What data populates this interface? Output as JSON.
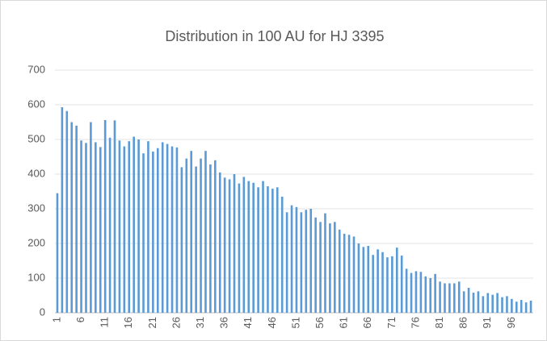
{
  "chart_data": {
    "type": "bar",
    "title": "Distribution in 100 AU for HJ 3395",
    "categories": [
      "1",
      null,
      null,
      null,
      null,
      "6",
      null,
      null,
      null,
      null,
      "11",
      null,
      null,
      null,
      null,
      "16",
      null,
      null,
      null,
      null,
      "21",
      null,
      null,
      null,
      null,
      "26",
      null,
      null,
      null,
      null,
      "31",
      null,
      null,
      null,
      null,
      "36",
      null,
      null,
      null,
      null,
      "41",
      null,
      null,
      null,
      null,
      "46",
      null,
      null,
      null,
      null,
      "51",
      null,
      null,
      null,
      null,
      "56",
      null,
      null,
      null,
      null,
      "61",
      null,
      null,
      null,
      null,
      "66",
      null,
      null,
      null,
      null,
      "71",
      null,
      null,
      null,
      null,
      "76",
      null,
      null,
      null,
      null,
      "81",
      null,
      null,
      null,
      null,
      "86",
      null,
      null,
      null,
      null,
      "91",
      null,
      null,
      null,
      null,
      "96",
      null,
      null,
      null,
      null
    ],
    "values": [
      345,
      593,
      582,
      550,
      540,
      497,
      490,
      550,
      492,
      478,
      556,
      505,
      555,
      497,
      480,
      495,
      508,
      500,
      460,
      495,
      465,
      475,
      492,
      487,
      480,
      477,
      420,
      445,
      467,
      422,
      445,
      467,
      428,
      440,
      405,
      390,
      385,
      400,
      373,
      392,
      380,
      375,
      362,
      380,
      365,
      358,
      362,
      335,
      290,
      310,
      305,
      290,
      297,
      300,
      275,
      262,
      287,
      258,
      262,
      240,
      228,
      225,
      220,
      200,
      190,
      193,
      167,
      183,
      175,
      160,
      163,
      188,
      165,
      127,
      115,
      120,
      118,
      105,
      100,
      112,
      90,
      85,
      85,
      85,
      90,
      62,
      72,
      58,
      62,
      48,
      57,
      52,
      57,
      45,
      48,
      40,
      32,
      37,
      30,
      35
    ],
    "color": "#5b9bd5",
    "ylim": [
      0,
      700
    ],
    "yticks": [
      0,
      100,
      200,
      300,
      400,
      500,
      600,
      700
    ],
    "grid": true
  }
}
